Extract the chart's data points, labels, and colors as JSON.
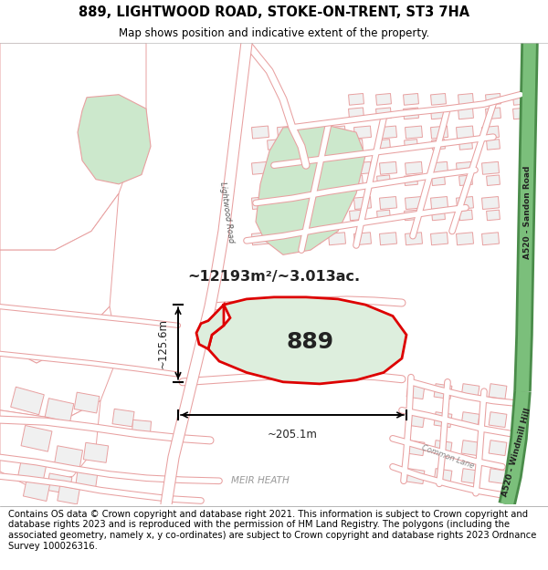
{
  "title": "889, LIGHTWOOD ROAD, STOKE-ON-TRENT, ST3 7HA",
  "subtitle": "Map shows position and indicative extent of the property.",
  "footer": "Contains OS data © Crown copyright and database right 2021. This information is subject to Crown copyright and database rights 2023 and is reproduced with the permission of HM Land Registry. The polygons (including the associated geometry, namely x, y co-ordinates) are subject to Crown copyright and database rights 2023 Ordnance Survey 100026316.",
  "map_bg": "#ffffff",
  "road_color": "#e8a0a0",
  "road_fill": "#ffffff",
  "parcel_edge": "#e8a0a0",
  "highlight_plot_color": "#ddeedd",
  "highlight_plot_outline": "#dd0000",
  "green_road_dark": "#6aaa6a",
  "green_road_light": "#8fcc8f",
  "green_area_color": "#cce8cc",
  "label_889": "889",
  "area_label": "~12193m²/~3.013ac.",
  "dim_h": "~125.6m",
  "dim_w": "~205.1m",
  "road_label_left": "Lightwood Road",
  "road_label_right_1": "A520 - Sandon Road",
  "road_label_right_2": "A520 - Windmill Hill",
  "label_meir": "MEIR HEATH",
  "label_common": "Common Lane",
  "title_fontsize": 10.5,
  "subtitle_fontsize": 8.5,
  "footer_fontsize": 7.2
}
